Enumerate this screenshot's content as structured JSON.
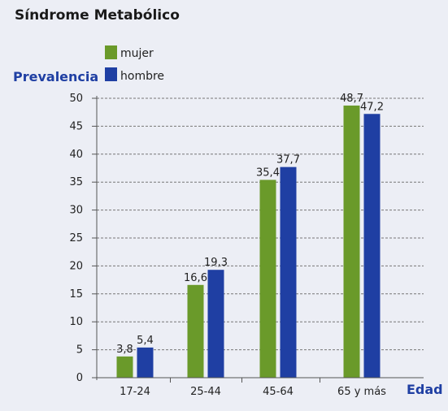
{
  "chart_data": {
    "type": "bar",
    "title": "Síndrome Metabólico",
    "ylabel": "Prevalencia",
    "xlabel": "Edad",
    "categories": [
      "17-24",
      "25-44",
      "45-64",
      "65 y más"
    ],
    "series": [
      {
        "name": "mujer",
        "values": [
          3.8,
          16.6,
          35.4,
          48.7
        ],
        "labels": [
          "3,8",
          "16,6",
          "35,4",
          "48,7"
        ],
        "color": "#6a9a2a"
      },
      {
        "name": "hombre",
        "values": [
          5.4,
          19.3,
          37.7,
          47.2
        ],
        "labels": [
          "5,4",
          "19,3",
          "37,7",
          "47,2"
        ],
        "color": "#1f3fa3"
      }
    ],
    "ylim": [
      0,
      50
    ],
    "yticks": [
      0,
      5,
      10,
      15,
      20,
      25,
      30,
      35,
      40,
      45,
      50
    ],
    "grid": true,
    "legend": "top-left"
  }
}
